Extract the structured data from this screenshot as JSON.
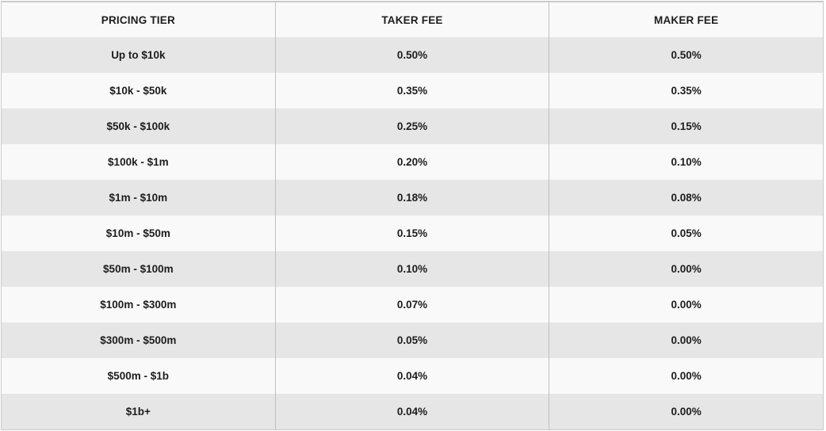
{
  "chart_data": {
    "type": "table",
    "columns": [
      "PRICING TIER",
      "TAKER FEE",
      "MAKER FEE"
    ],
    "rows": [
      [
        "Up to $10k",
        "0.50%",
        "0.50%"
      ],
      [
        "$10k - $50k",
        "0.35%",
        "0.35%"
      ],
      [
        "$50k - $100k",
        "0.25%",
        "0.15%"
      ],
      [
        "$100k - $1m",
        "0.20%",
        "0.10%"
      ],
      [
        "$1m - $10m",
        "0.18%",
        "0.08%"
      ],
      [
        "$10m - $50m",
        "0.15%",
        "0.05%"
      ],
      [
        "$50m - $100m",
        "0.10%",
        "0.00%"
      ],
      [
        "$100m - $300m",
        "0.07%",
        "0.00%"
      ],
      [
        "$300m - $500m",
        "0.05%",
        "0.00%"
      ],
      [
        "$500m - $1b",
        "0.04%",
        "0.00%"
      ],
      [
        "$1b+",
        "0.04%",
        "0.00%"
      ]
    ]
  },
  "colors": {
    "header-bg": "#f9f9f9",
    "row-bg": "#f9f9f9",
    "row-alt-bg": "#e6e6e6",
    "border-outer": "#c9c9c9",
    "border-column": "#c0c0c0",
    "text": "#1d1d1d"
  },
  "cell_names": [
    "cell-pricing-tier",
    "cell-taker-fee",
    "cell-maker-fee"
  ]
}
